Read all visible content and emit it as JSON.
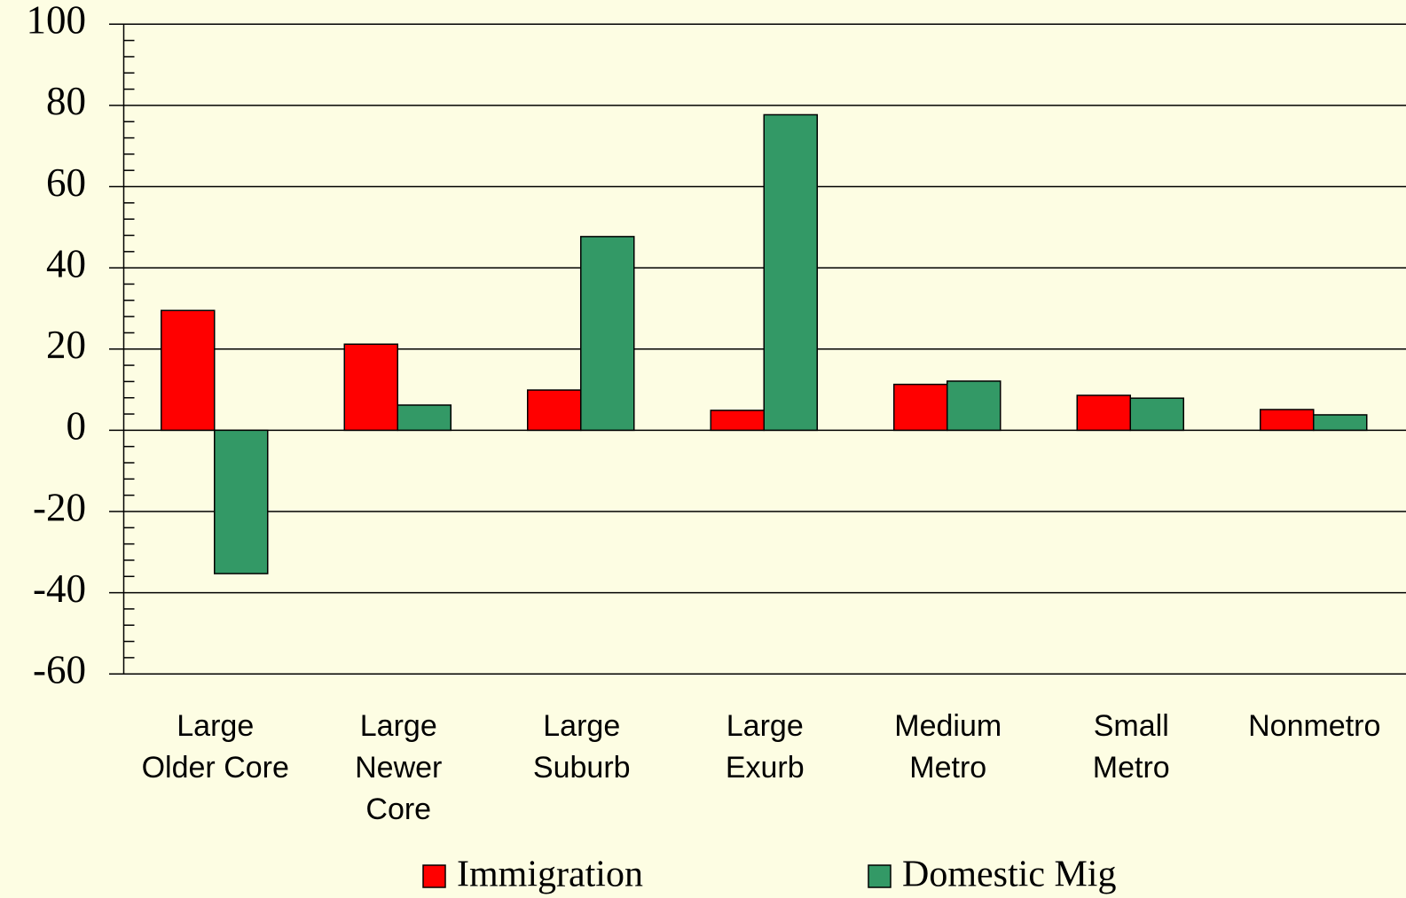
{
  "chart_data": {
    "type": "bar",
    "categories": [
      "Large\nOlder Core",
      "Large\nNewer\nCore",
      "Large\nSuburb",
      "Large\nExurb",
      "Medium\nMetro",
      "Small\nMetro",
      "Nonmetro"
    ],
    "series": [
      {
        "name": "Immigration",
        "color": "#ff0000",
        "values": [
          29.5,
          21.2,
          9.9,
          4.9,
          11.3,
          8.6,
          5.1
        ]
      },
      {
        "name": "Domestic Mig",
        "color": "#339966",
        "values": [
          -35.3,
          6.2,
          47.7,
          77.7,
          12.1,
          7.9,
          3.8
        ]
      }
    ],
    "ylim": [
      -60,
      100
    ],
    "yticks": [
      -60,
      -40,
      -20,
      0,
      20,
      40,
      60,
      80,
      100
    ],
    "grid": true,
    "legend": "bottom"
  }
}
